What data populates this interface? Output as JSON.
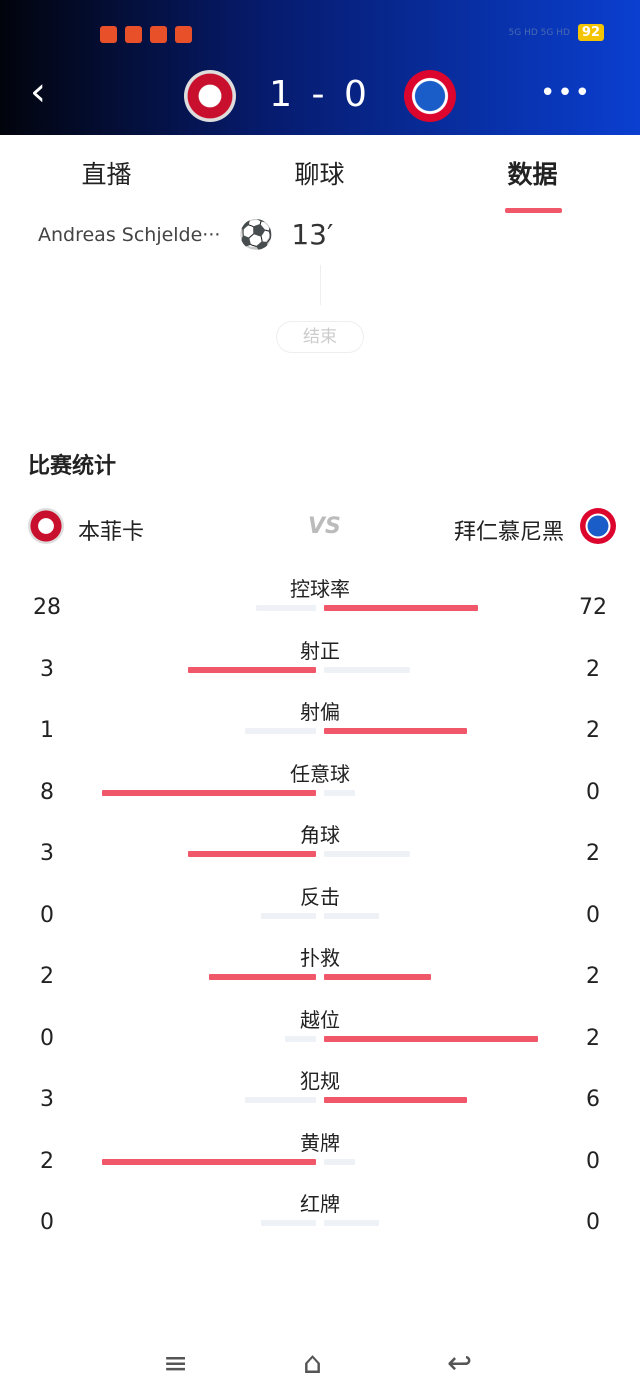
{
  "status_bar": {
    "battery": "92",
    "network": "5G HD 5G HD"
  },
  "header": {
    "score": "1 - 0",
    "home_crest": "benfica-crest",
    "away_crest": "bayern-crest"
  },
  "tabs": [
    {
      "label": "直播"
    },
    {
      "label": "聊球"
    },
    {
      "label": "数据",
      "active": true
    }
  ],
  "event": {
    "player": "Andreas Schjelde···",
    "minute": "13′",
    "icon": "soccer-ball-icon"
  },
  "end_label": "结束",
  "stats": {
    "title": "比赛统计",
    "home": "本菲卡",
    "away": "拜仁慕尼黑",
    "vs": "VS",
    "colors": {
      "lead": "#f0586a",
      "track": "#eef2f6"
    },
    "rows": [
      {
        "label": "控球率",
        "home": 28,
        "away": 72
      },
      {
        "label": "射正",
        "home": 3,
        "away": 2
      },
      {
        "label": "射偏",
        "home": 1,
        "away": 2
      },
      {
        "label": "任意球",
        "home": 8,
        "away": 0
      },
      {
        "label": "角球",
        "home": 3,
        "away": 2
      },
      {
        "label": "反击",
        "home": 0,
        "away": 0
      },
      {
        "label": "扑救",
        "home": 2,
        "away": 2
      },
      {
        "label": "越位",
        "home": 0,
        "away": 2
      },
      {
        "label": "犯规",
        "home": 3,
        "away": 6
      },
      {
        "label": "黄牌",
        "home": 2,
        "away": 0
      },
      {
        "label": "红牌",
        "home": 0,
        "away": 0
      }
    ]
  },
  "nav": {
    "menu": "≡",
    "home": "⌂",
    "back": "↩"
  }
}
